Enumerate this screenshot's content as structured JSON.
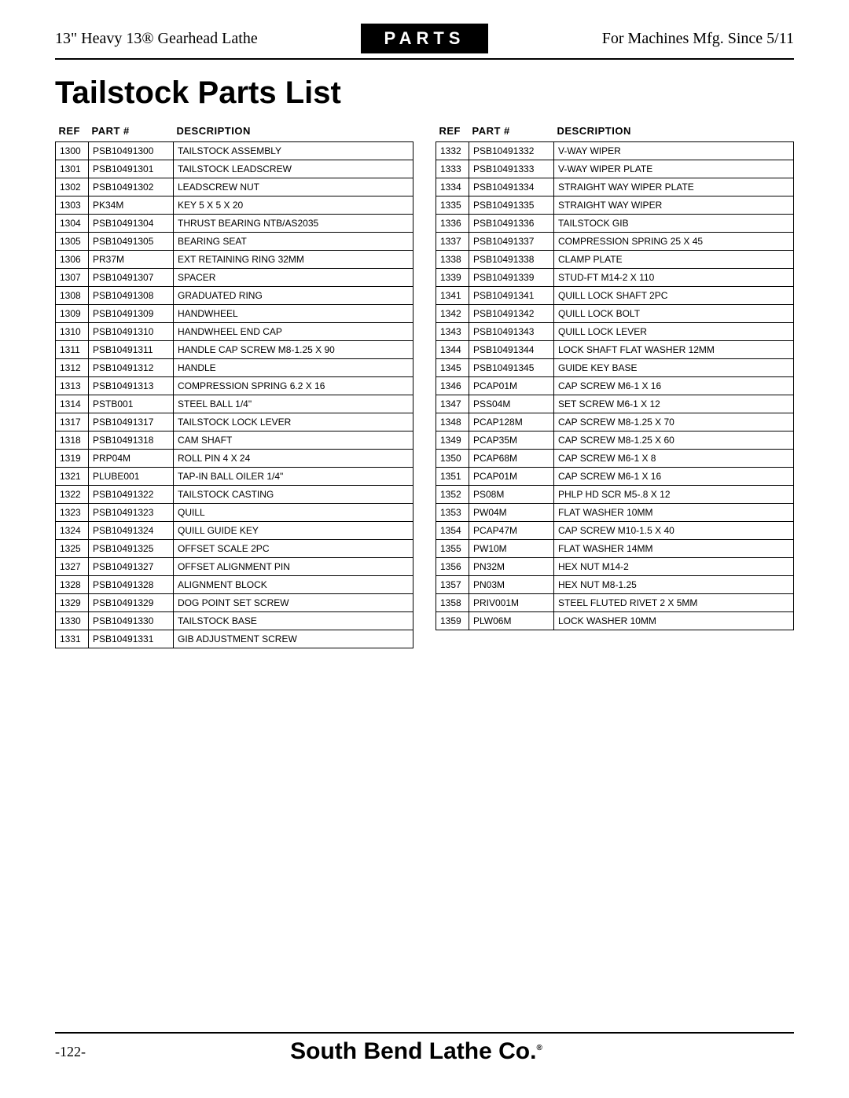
{
  "header": {
    "left": "13\" Heavy 13® Gearhead Lathe",
    "center": "PARTS",
    "right": "For Machines Mfg. Since 5/11"
  },
  "title": "Tailstock Parts List",
  "table_headers": {
    "ref": "REF",
    "part": "PART #",
    "desc": "DESCRIPTION"
  },
  "left_rows": [
    {
      "ref": "1300",
      "part": "PSB10491300",
      "desc": "TAILSTOCK ASSEMBLY"
    },
    {
      "ref": "1301",
      "part": "PSB10491301",
      "desc": "TAILSTOCK LEADSCREW"
    },
    {
      "ref": "1302",
      "part": "PSB10491302",
      "desc": "LEADSCREW NUT"
    },
    {
      "ref": "1303",
      "part": "PK34M",
      "desc": "KEY 5 X 5 X 20"
    },
    {
      "ref": "1304",
      "part": "PSB10491304",
      "desc": "THRUST BEARING NTB/AS2035"
    },
    {
      "ref": "1305",
      "part": "PSB10491305",
      "desc": "BEARING SEAT"
    },
    {
      "ref": "1306",
      "part": "PR37M",
      "desc": "EXT RETAINING RING 32MM"
    },
    {
      "ref": "1307",
      "part": "PSB10491307",
      "desc": "SPACER"
    },
    {
      "ref": "1308",
      "part": "PSB10491308",
      "desc": "GRADUATED RING"
    },
    {
      "ref": "1309",
      "part": "PSB10491309",
      "desc": "HANDWHEEL"
    },
    {
      "ref": "1310",
      "part": "PSB10491310",
      "desc": "HANDWHEEL END CAP"
    },
    {
      "ref": "1311",
      "part": "PSB10491311",
      "desc": "HANDLE CAP SCREW M8-1.25 X 90"
    },
    {
      "ref": "1312",
      "part": "PSB10491312",
      "desc": "HANDLE"
    },
    {
      "ref": "1313",
      "part": "PSB10491313",
      "desc": "COMPRESSION SPRING 6.2 X 16"
    },
    {
      "ref": "1314",
      "part": "PSTB001",
      "desc": "STEEL BALL 1/4\""
    },
    {
      "ref": "1317",
      "part": "PSB10491317",
      "desc": "TAILSTOCK LOCK LEVER"
    },
    {
      "ref": "1318",
      "part": "PSB10491318",
      "desc": "CAM SHAFT"
    },
    {
      "ref": "1319",
      "part": "PRP04M",
      "desc": "ROLL PIN 4 X 24"
    },
    {
      "ref": "1321",
      "part": "PLUBE001",
      "desc": "TAP-IN BALL OILER 1/4\""
    },
    {
      "ref": "1322",
      "part": "PSB10491322",
      "desc": "TAILSTOCK CASTING"
    },
    {
      "ref": "1323",
      "part": "PSB10491323",
      "desc": "QUILL"
    },
    {
      "ref": "1324",
      "part": "PSB10491324",
      "desc": "QUILL GUIDE KEY"
    },
    {
      "ref": "1325",
      "part": "PSB10491325",
      "desc": "OFFSET SCALE 2PC"
    },
    {
      "ref": "1327",
      "part": "PSB10491327",
      "desc": "OFFSET ALIGNMENT PIN"
    },
    {
      "ref": "1328",
      "part": "PSB10491328",
      "desc": "ALIGNMENT BLOCK"
    },
    {
      "ref": "1329",
      "part": "PSB10491329",
      "desc": "DOG POINT SET SCREW"
    },
    {
      "ref": "1330",
      "part": "PSB10491330",
      "desc": "TAILSTOCK BASE"
    },
    {
      "ref": "1331",
      "part": "PSB10491331",
      "desc": "GIB ADJUSTMENT SCREW"
    }
  ],
  "right_rows": [
    {
      "ref": "1332",
      "part": "PSB10491332",
      "desc": "V-WAY WIPER"
    },
    {
      "ref": "1333",
      "part": "PSB10491333",
      "desc": "V-WAY WIPER PLATE"
    },
    {
      "ref": "1334",
      "part": "PSB10491334",
      "desc": "STRAIGHT WAY WIPER PLATE"
    },
    {
      "ref": "1335",
      "part": "PSB10491335",
      "desc": "STRAIGHT WAY WIPER"
    },
    {
      "ref": "1336",
      "part": "PSB10491336",
      "desc": "TAILSTOCK GIB"
    },
    {
      "ref": "1337",
      "part": "PSB10491337",
      "desc": "COMPRESSION SPRING 25 X 45"
    },
    {
      "ref": "1338",
      "part": "PSB10491338",
      "desc": "CLAMP PLATE"
    },
    {
      "ref": "1339",
      "part": "PSB10491339",
      "desc": "STUD-FT M14-2 X 110"
    },
    {
      "ref": "1341",
      "part": "PSB10491341",
      "desc": "QUILL LOCK SHAFT 2PC"
    },
    {
      "ref": "1342",
      "part": "PSB10491342",
      "desc": "QUILL LOCK BOLT"
    },
    {
      "ref": "1343",
      "part": "PSB10491343",
      "desc": "QUILL LOCK LEVER"
    },
    {
      "ref": "1344",
      "part": "PSB10491344",
      "desc": "LOCK SHAFT FLAT WASHER 12MM"
    },
    {
      "ref": "1345",
      "part": "PSB10491345",
      "desc": "GUIDE KEY BASE"
    },
    {
      "ref": "1346",
      "part": "PCAP01M",
      "desc": "CAP SCREW M6-1 X 16"
    },
    {
      "ref": "1347",
      "part": "PSS04M",
      "desc": "SET SCREW M6-1 X 12"
    },
    {
      "ref": "1348",
      "part": "PCAP128M",
      "desc": "CAP SCREW M8-1.25 X 70"
    },
    {
      "ref": "1349",
      "part": "PCAP35M",
      "desc": "CAP SCREW M8-1.25 X 60"
    },
    {
      "ref": "1350",
      "part": "PCAP68M",
      "desc": "CAP SCREW M6-1 X 8"
    },
    {
      "ref": "1351",
      "part": "PCAP01M",
      "desc": "CAP SCREW M6-1 X 16"
    },
    {
      "ref": "1352",
      "part": "PS08M",
      "desc": "PHLP HD SCR M5-.8 X 12"
    },
    {
      "ref": "1353",
      "part": "PW04M",
      "desc": "FLAT WASHER 10MM"
    },
    {
      "ref": "1354",
      "part": "PCAP47M",
      "desc": "CAP SCREW M10-1.5 X 40"
    },
    {
      "ref": "1355",
      "part": "PW10M",
      "desc": "FLAT WASHER 14MM"
    },
    {
      "ref": "1356",
      "part": "PN32M",
      "desc": "HEX NUT M14-2"
    },
    {
      "ref": "1357",
      "part": "PN03M",
      "desc": "HEX NUT M8-1.25"
    },
    {
      "ref": "1358",
      "part": "PRIV001M",
      "desc": "STEEL FLUTED RIVET 2 X 5MM"
    },
    {
      "ref": "1359",
      "part": "PLW06M",
      "desc": "LOCK WASHER 10MM"
    }
  ],
  "footer": {
    "page": "-122-",
    "company": "South Bend Lathe Co.",
    "reg": "®"
  }
}
